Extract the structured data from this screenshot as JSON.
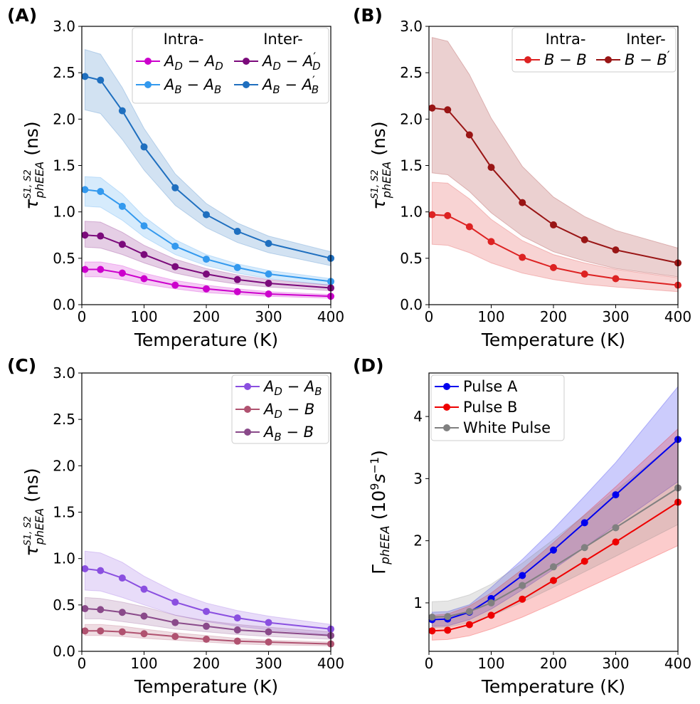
{
  "chart_data": [
    {
      "panel_label": "(A)",
      "type": "line",
      "xlabel": "Temperature (K)",
      "ylabel_symbol": "τ",
      "ylabel_sup": "S1, S2",
      "ylabel_sub": "phEEA",
      "ylabel_unit": "(ns)",
      "xlim": [
        0,
        400
      ],
      "ylim": [
        0,
        3.0
      ],
      "xticks": [
        "0",
        "100",
        "200",
        "300",
        "400"
      ],
      "yticks": [
        "0.0",
        "0.5",
        "1.0",
        "1.5",
        "2.0",
        "2.5",
        "3.0"
      ],
      "legend_headers": [
        "Intra-",
        "Inter-"
      ],
      "x": [
        5,
        30,
        65,
        100,
        150,
        200,
        250,
        300,
        400
      ],
      "series": [
        {
          "name": "AD-AD",
          "label_main": "A",
          "label_sub1": "D",
          "label_main2": "A",
          "label_sub2": "D",
          "prime": false,
          "color": "#cc00cc",
          "values": [
            0.38,
            0.38,
            0.34,
            0.28,
            0.21,
            0.17,
            0.14,
            0.115,
            0.09
          ],
          "lower": [
            0.3,
            0.3,
            0.27,
            0.22,
            0.17,
            0.13,
            0.11,
            0.09,
            0.07
          ],
          "upper": [
            0.46,
            0.46,
            0.42,
            0.34,
            0.26,
            0.21,
            0.17,
            0.14,
            0.11
          ]
        },
        {
          "name": "AB-AB",
          "label_main": "A",
          "label_sub1": "B",
          "label_main2": "A",
          "label_sub2": "B",
          "prime": false,
          "color": "#3399ee",
          "values": [
            1.24,
            1.22,
            1.06,
            0.85,
            0.63,
            0.49,
            0.4,
            0.33,
            0.25
          ],
          "lower": [
            1.06,
            1.05,
            0.91,
            0.73,
            0.54,
            0.42,
            0.34,
            0.28,
            0.21
          ],
          "upper": [
            1.38,
            1.37,
            1.19,
            0.95,
            0.7,
            0.54,
            0.44,
            0.37,
            0.28
          ]
        },
        {
          "name": "AD-AD'",
          "label_main": "A",
          "label_sub1": "D",
          "label_main2": "A",
          "label_sub2": "D",
          "prime": true,
          "color": "#7b0a7b",
          "values": [
            0.75,
            0.74,
            0.65,
            0.54,
            0.41,
            0.33,
            0.27,
            0.23,
            0.18
          ],
          "lower": [
            0.62,
            0.61,
            0.54,
            0.45,
            0.34,
            0.27,
            0.22,
            0.19,
            0.15
          ],
          "upper": [
            0.9,
            0.89,
            0.78,
            0.64,
            0.49,
            0.39,
            0.32,
            0.27,
            0.21
          ]
        },
        {
          "name": "AB-AB'",
          "label_main": "A",
          "label_sub1": "B",
          "label_main2": "A",
          "label_sub2": "B",
          "prime": true,
          "color": "#1f6fbf",
          "values": [
            2.46,
            2.42,
            2.09,
            1.7,
            1.26,
            0.97,
            0.79,
            0.66,
            0.5
          ],
          "lower": [
            2.1,
            2.06,
            1.78,
            1.45,
            1.07,
            0.83,
            0.67,
            0.56,
            0.42
          ],
          "upper": [
            2.75,
            2.7,
            2.34,
            1.9,
            1.41,
            1.09,
            0.88,
            0.74,
            0.57
          ]
        }
      ]
    },
    {
      "panel_label": "(B)",
      "type": "line",
      "xlabel": "Temperature (K)",
      "ylabel_symbol": "τ",
      "ylabel_sup": "S1, S2",
      "ylabel_sub": "phEEA",
      "ylabel_unit": "(ns)",
      "xlim": [
        0,
        400
      ],
      "ylim": [
        0,
        3.0
      ],
      "xticks": [
        "0",
        "100",
        "200",
        "300",
        "400"
      ],
      "yticks": [
        "0.0",
        "0.5",
        "1.0",
        "1.5",
        "2.0",
        "2.5",
        "3.0"
      ],
      "legend_headers": [
        "Intra-",
        "Inter-"
      ],
      "x": [
        5,
        30,
        65,
        100,
        150,
        200,
        250,
        300,
        400
      ],
      "series": [
        {
          "name": "B-B",
          "label_main": "B",
          "label_main2": "B",
          "prime": false,
          "color": "#dd2222",
          "values": [
            0.97,
            0.96,
            0.84,
            0.68,
            0.51,
            0.4,
            0.33,
            0.28,
            0.21
          ],
          "lower": [
            0.65,
            0.64,
            0.56,
            0.45,
            0.34,
            0.27,
            0.22,
            0.19,
            0.14
          ],
          "upper": [
            1.32,
            1.31,
            1.14,
            0.92,
            0.69,
            0.54,
            0.45,
            0.38,
            0.29
          ]
        },
        {
          "name": "B-B'",
          "label_main": "B",
          "label_main2": "B",
          "prime": true,
          "color": "#991515",
          "values": [
            2.12,
            2.1,
            1.83,
            1.48,
            1.1,
            0.86,
            0.7,
            0.59,
            0.45
          ],
          "lower": [
            1.42,
            1.4,
            1.22,
            0.99,
            0.74,
            0.57,
            0.47,
            0.39,
            0.3
          ],
          "upper": [
            2.88,
            2.84,
            2.48,
            2.01,
            1.49,
            1.16,
            0.95,
            0.8,
            0.61
          ]
        }
      ]
    },
    {
      "panel_label": "(C)",
      "type": "line",
      "xlabel": "Temperature (K)",
      "ylabel_symbol": "τ",
      "ylabel_sup": "S1, S2",
      "ylabel_sub": "phEEA",
      "ylabel_unit": "(ns)",
      "xlim": [
        0,
        400
      ],
      "ylim": [
        0,
        3.0
      ],
      "xticks": [
        "0",
        "100",
        "200",
        "300",
        "400"
      ],
      "yticks": [
        "0.0",
        "0.5",
        "1.0",
        "1.5",
        "2.0",
        "2.5",
        "3.0"
      ],
      "x": [
        5,
        30,
        65,
        100,
        150,
        200,
        250,
        300,
        400
      ],
      "series": [
        {
          "name": "AD-AB",
          "label_main": "A",
          "label_sub1": "D",
          "label_main2": "A",
          "label_sub2": "B",
          "prime": false,
          "color": "#8a4fe0",
          "values": [
            0.89,
            0.87,
            0.79,
            0.67,
            0.53,
            0.43,
            0.36,
            0.31,
            0.24
          ],
          "lower": [
            0.66,
            0.65,
            0.58,
            0.5,
            0.39,
            0.32,
            0.27,
            0.23,
            0.18
          ],
          "upper": [
            1.08,
            1.06,
            0.96,
            0.81,
            0.64,
            0.52,
            0.44,
            0.38,
            0.29
          ]
        },
        {
          "name": "AD-B",
          "label_main": "A",
          "label_sub1": "D",
          "label_main2": "B",
          "prime": false,
          "color": "#b05270",
          "values": [
            0.22,
            0.22,
            0.21,
            0.19,
            0.16,
            0.13,
            0.11,
            0.1,
            0.08
          ],
          "lower": [
            0.17,
            0.17,
            0.16,
            0.14,
            0.12,
            0.1,
            0.08,
            0.07,
            0.06
          ],
          "upper": [
            0.29,
            0.29,
            0.27,
            0.24,
            0.2,
            0.17,
            0.14,
            0.12,
            0.1
          ]
        },
        {
          "name": "AB-B",
          "label_main": "A",
          "label_sub1": "B",
          "label_main2": "B",
          "prime": false,
          "color": "#8a4a8a",
          "values": [
            0.46,
            0.45,
            0.42,
            0.38,
            0.31,
            0.27,
            0.23,
            0.21,
            0.17
          ],
          "lower": [
            0.35,
            0.35,
            0.32,
            0.29,
            0.24,
            0.21,
            0.18,
            0.16,
            0.13
          ],
          "upper": [
            0.58,
            0.57,
            0.53,
            0.48,
            0.39,
            0.33,
            0.29,
            0.26,
            0.21
          ]
        }
      ]
    },
    {
      "panel_label": "(D)",
      "type": "line",
      "xlabel": "Temperature (K)",
      "ylabel_text": "Γ",
      "ylabel_sub": "phEEA",
      "ylabel_unit_pre": "(10",
      "ylabel_unit_sup": "9",
      "ylabel_unit_mid": "s",
      "ylabel_unit_sup2": "−1",
      "ylabel_unit_post": ")",
      "xlim": [
        0,
        400
      ],
      "ylim": [
        0.22,
        4.7
      ],
      "xticks": [
        "0",
        "100",
        "200",
        "300",
        "400"
      ],
      "yticks": [
        "1",
        "2",
        "3",
        "4"
      ],
      "ytick_values": [
        1,
        2,
        3,
        4
      ],
      "x": [
        5,
        30,
        65,
        100,
        150,
        200,
        250,
        300,
        400
      ],
      "series": [
        {
          "name": "Pulse A",
          "color": "#0000ee",
          "values": [
            0.73,
            0.74,
            0.85,
            1.07,
            1.44,
            1.85,
            2.29,
            2.74,
            3.63
          ],
          "lower": [
            0.62,
            0.63,
            0.73,
            0.9,
            1.21,
            1.54,
            1.89,
            2.25,
            2.95
          ],
          "upper": [
            0.85,
            0.86,
            0.97,
            1.25,
            1.7,
            2.19,
            2.72,
            3.26,
            4.48
          ]
        },
        {
          "name": "Pulse B",
          "color": "#ee0000",
          "values": [
            0.55,
            0.56,
            0.65,
            0.8,
            1.06,
            1.36,
            1.67,
            1.98,
            2.62
          ],
          "lower": [
            0.4,
            0.41,
            0.47,
            0.58,
            0.77,
            0.99,
            1.22,
            1.45,
            1.92
          ],
          "upper": [
            0.8,
            0.82,
            0.95,
            1.16,
            1.54,
            1.97,
            2.42,
            2.87,
            3.8
          ]
        },
        {
          "name": "White Pulse",
          "color": "#808080",
          "values": [
            0.77,
            0.78,
            0.86,
            1.0,
            1.28,
            1.58,
            1.89,
            2.21,
            2.85
          ],
          "lower": [
            0.6,
            0.61,
            0.68,
            0.79,
            1.01,
            1.25,
            1.5,
            1.75,
            2.26
          ],
          "upper": [
            1.02,
            1.03,
            1.13,
            1.3,
            1.64,
            2.02,
            2.41,
            2.81,
            3.62
          ]
        }
      ]
    }
  ]
}
